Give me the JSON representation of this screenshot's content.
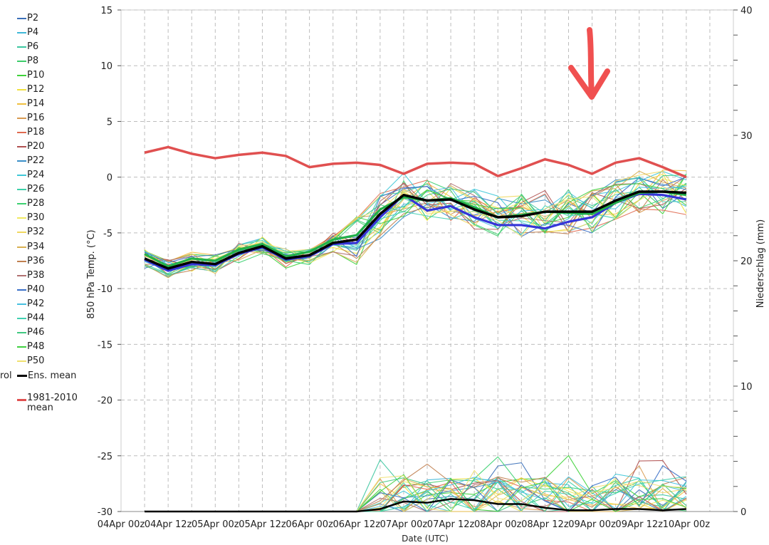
{
  "chart_data": {
    "type": "line",
    "title": "",
    "xlabel": "Date (UTC)",
    "ylabel": "850 hPa Temp. (°C)",
    "y2label": "Niederschlag (mm)",
    "ylim": [
      -30,
      15
    ],
    "y2lim": [
      0,
      40
    ],
    "yticks": [
      15,
      10,
      5,
      0,
      -5,
      -10,
      -15,
      -20,
      -25,
      -30
    ],
    "y2ticks": [
      40,
      30,
      20,
      10,
      0
    ],
    "xtick_labels": [
      "04Apr 00z",
      "04Apr 12z",
      "05Apr 00z",
      "05Apr 12z",
      "06Apr 00z",
      "06Apr 12z",
      "07Apr 00z",
      "07Apr 12z",
      "08Apr 00z",
      "08Apr 12z",
      "09Apr 00z",
      "09Apr 12z",
      "10Apr 00z"
    ],
    "x_hours": [
      6,
      12,
      18,
      24,
      30,
      36,
      42,
      48,
      54,
      60,
      66,
      72,
      78,
      84,
      90,
      96,
      102,
      108,
      114,
      120,
      126,
      132,
      138,
      144
    ],
    "series": [
      {
        "name": "Ens. mean",
        "color": "#000000",
        "values": [
          -7.3,
          -8.2,
          -7.6,
          -7.8,
          -6.8,
          -6.2,
          -7.3,
          -7.0,
          -5.9,
          -5.6,
          -3.3,
          -1.6,
          -2.1,
          -2.0,
          -2.9,
          -3.6,
          -3.5,
          -3.1,
          -3.1,
          -3.1,
          -2.1,
          -1.3,
          -1.3,
          -1.4
        ]
      },
      {
        "name": "1981-2010 mean",
        "color": "#e05050",
        "values": [
          2.2,
          2.7,
          2.1,
          1.7,
          2.0,
          2.2,
          1.9,
          0.9,
          1.2,
          1.3,
          1.1,
          0.3,
          1.2,
          1.3,
          1.2,
          0.1,
          0.8,
          1.6,
          1.1,
          0.3,
          1.3,
          1.7,
          0.9,
          0.0
        ]
      },
      {
        "name": "",
        "color": "#3535d8",
        "values": [
          -7.4,
          -8.4,
          -7.8,
          -7.9,
          -6.9,
          -6.3,
          -7.4,
          -7.1,
          -6.0,
          -5.9,
          -3.6,
          -1.6,
          -3.0,
          -2.6,
          -3.6,
          -4.3,
          -4.3,
          -4.6,
          -4.0,
          -3.6,
          -2.3,
          -1.5,
          -1.6,
          -2.0
        ]
      },
      {
        "name": "",
        "color": "#22b04a",
        "values": [
          -6.9,
          -8.0,
          -7.3,
          -7.5,
          -6.5,
          -6.0,
          -7.1,
          -6.7,
          -5.6,
          -5.2,
          -2.9,
          -1.8,
          -2.1,
          -1.9,
          -2.7,
          -3.6,
          -3.4,
          -3.1,
          -3.2,
          -3.3,
          -2.3,
          -1.4,
          -1.3,
          -1.6
        ]
      }
    ],
    "legend": {
      "position": "left",
      "entries": [
        "P2",
        "P4",
        "P6",
        "P8",
        "P10",
        "P12",
        "P14",
        "P16",
        "P18",
        "P20",
        "P22",
        "P24",
        "P26",
        "P28",
        "P30",
        "P32",
        "P34",
        "P36",
        "P38",
        "P40",
        "P42",
        "P44",
        "P46",
        "P48",
        "P50",
        "Ens. mean",
        "1981-2010\nmean"
      ],
      "colors": [
        "#3a6fb8",
        "#3fb8d8",
        "#3cc7a0",
        "#3dcc6a",
        "#3ed23a",
        "#f0e040",
        "#f0c040",
        "#d89a50",
        "#e06a50",
        "#b05050",
        "#3a8fc8",
        "#3fc8d8",
        "#3cd0a8",
        "#3cd070",
        "#f0e860",
        "#f0d860",
        "#d8b050",
        "#c08050",
        "#b07070",
        "#3a6fc8",
        "#48c0e0",
        "#40d0b0",
        "#40c880",
        "#40d040",
        "#f0e070",
        "#000000",
        "#e05050"
      ],
      "partial_text": "rol"
    },
    "precipitation_members": "many thin colored spikes near the bottom axis, peaks up to ~5 mm",
    "grid": true
  },
  "annotation": {
    "type": "hand-drawn-arrow",
    "color": "#f05050"
  }
}
